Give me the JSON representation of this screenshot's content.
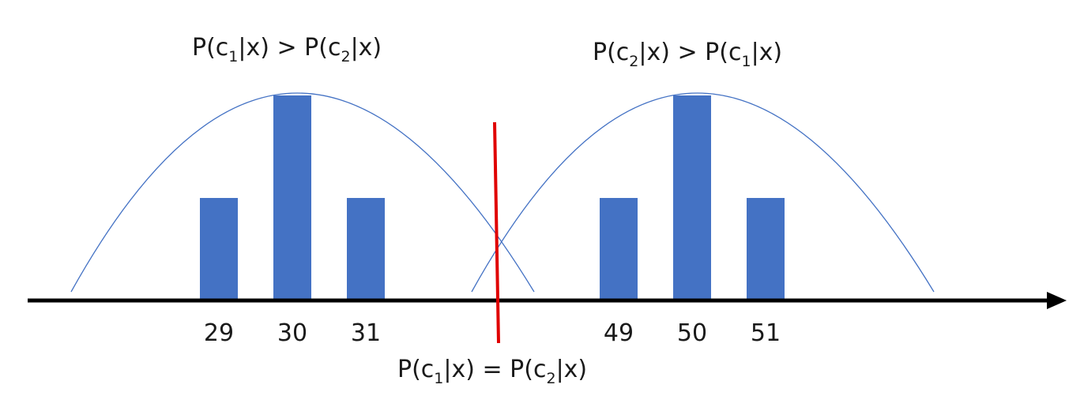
{
  "chart_data": {
    "type": "bar",
    "categories": [
      "29",
      "30",
      "31",
      "49",
      "50",
      "51"
    ],
    "values": [
      2,
      4,
      2,
      2,
      4,
      2
    ],
    "groups": [
      {
        "categories": [
          "29",
          "30",
          "31"
        ],
        "values": [
          2,
          4,
          2
        ],
        "region_label": {
          "prefix": "P(c",
          "s1": "1",
          "mid": "|x) > P(c",
          "s2": "2",
          "suffix": "|x)"
        }
      },
      {
        "categories": [
          "49",
          "50",
          "51"
        ],
        "values": [
          2,
          4,
          2
        ],
        "region_label": {
          "prefix": "P(c",
          "s1": "2",
          "mid": "|x) > P(c",
          "s2": "1",
          "suffix": "|x)"
        }
      }
    ],
    "boundary_label": {
      "prefix": "P(c",
      "s1": "1",
      "mid": "|x) = P(c",
      "s2": "2",
      "suffix": "|x)"
    },
    "colors": {
      "bar": "#4472c4",
      "curve": "#4472c4",
      "axis": "#000000",
      "boundary": "#e00000"
    }
  }
}
